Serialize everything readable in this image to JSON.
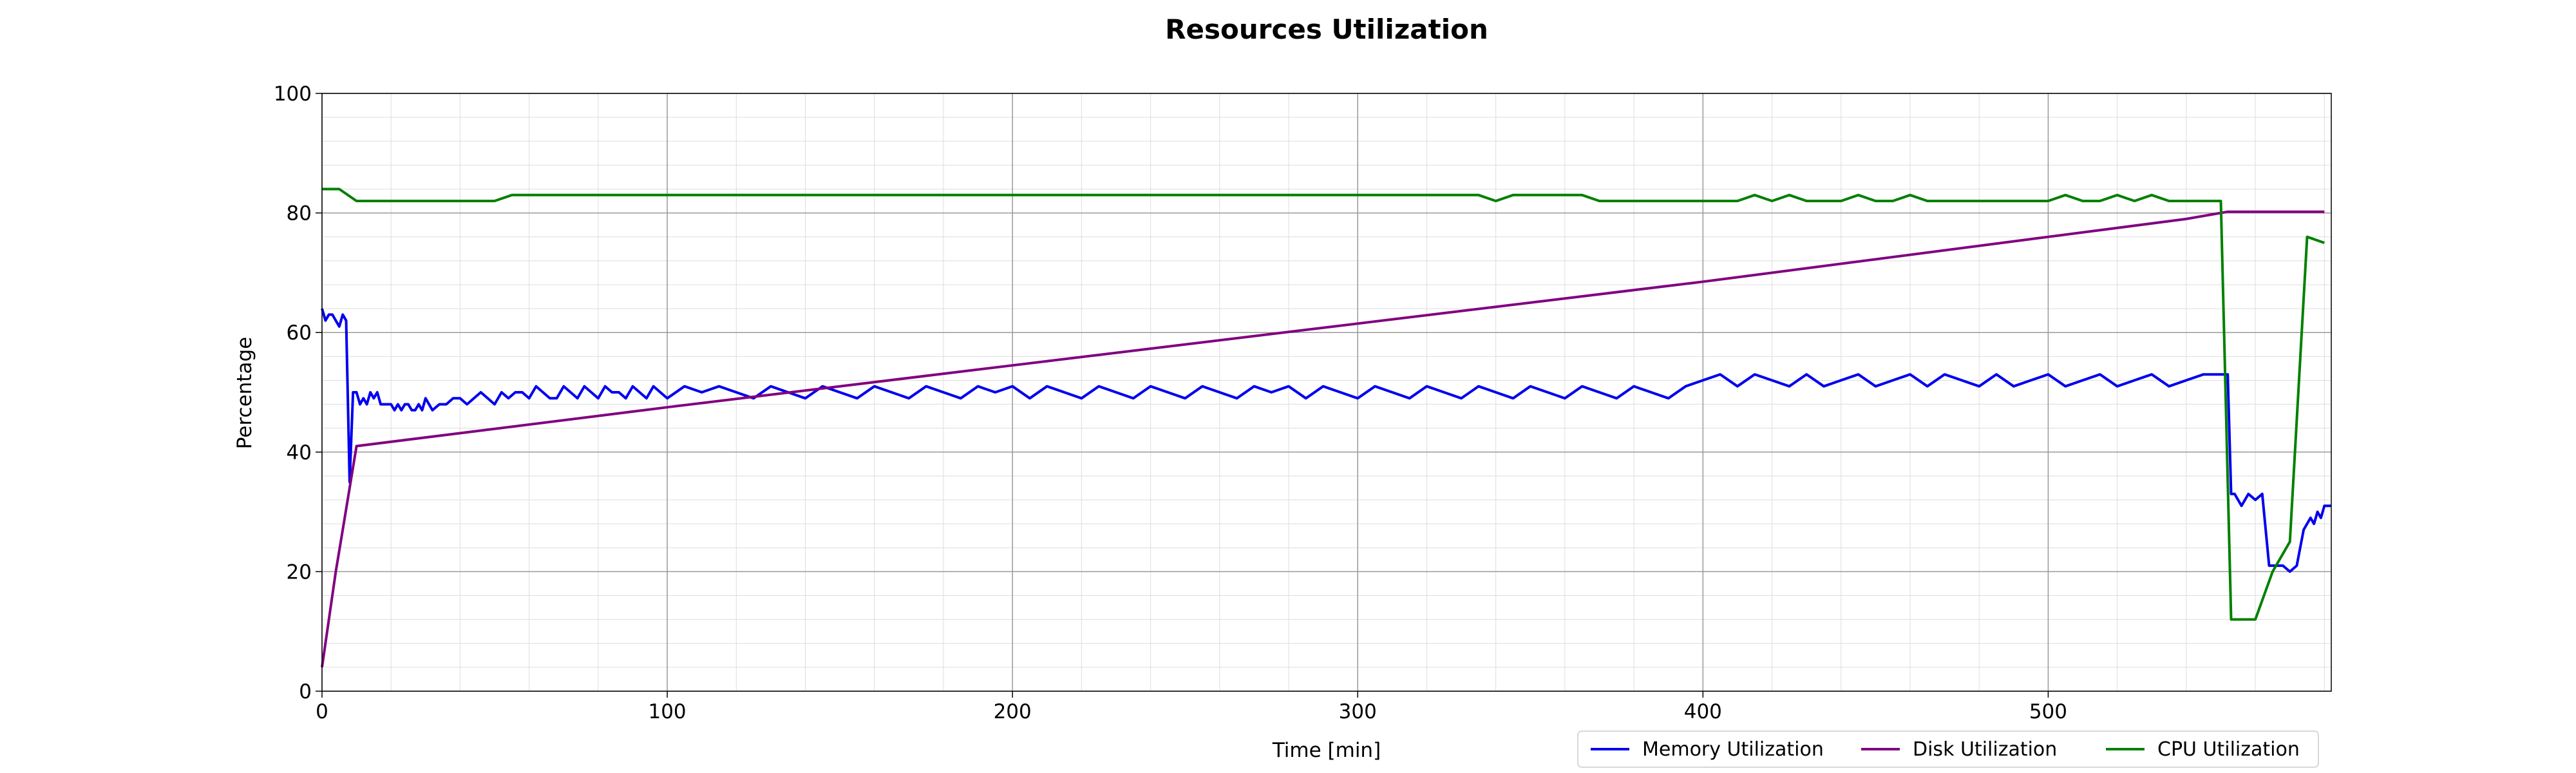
{
  "chart_data": {
    "type": "line",
    "title": "Resources Utilization",
    "xlabel": "Time [min]",
    "ylabel": "Percentage",
    "xlim": [
      0,
      582
    ],
    "ylim": [
      0,
      100
    ],
    "xticks": [
      0,
      100,
      200,
      300,
      400,
      500
    ],
    "yticks": [
      0,
      20,
      40,
      60,
      80,
      100
    ],
    "grid": true,
    "minor_grid": true,
    "legend_position": "lower-right",
    "series": [
      {
        "name": "Memory Utilization",
        "color": "#0000ee",
        "x": [
          0,
          1,
          2,
          3,
          4,
          5,
          6,
          7,
          8,
          9,
          10,
          11,
          12,
          13,
          14,
          15,
          16,
          17,
          18,
          19,
          20,
          21,
          22,
          23,
          24,
          25,
          26,
          27,
          28,
          29,
          30,
          32,
          34,
          36,
          38,
          40,
          42,
          44,
          46,
          48,
          50,
          52,
          54,
          56,
          58,
          60,
          62,
          64,
          66,
          68,
          70,
          72,
          74,
          76,
          78,
          80,
          82,
          84,
          86,
          88,
          90,
          92,
          94,
          96,
          98,
          100,
          105,
          110,
          115,
          120,
          125,
          130,
          135,
          140,
          145,
          150,
          155,
          160,
          165,
          170,
          175,
          180,
          185,
          190,
          195,
          200,
          205,
          210,
          215,
          220,
          225,
          230,
          235,
          240,
          245,
          250,
          255,
          260,
          265,
          270,
          275,
          280,
          285,
          290,
          295,
          300,
          305,
          310,
          315,
          320,
          325,
          330,
          335,
          340,
          345,
          350,
          355,
          360,
          365,
          370,
          375,
          380,
          385,
          390,
          395,
          400,
          405,
          410,
          415,
          420,
          425,
          430,
          435,
          440,
          445,
          450,
          455,
          460,
          465,
          470,
          475,
          480,
          485,
          490,
          495,
          500,
          505,
          510,
          515,
          520,
          525,
          530,
          535,
          540,
          545,
          550,
          552,
          553,
          554,
          556,
          558,
          560,
          562,
          564,
          566,
          568,
          570,
          572,
          574,
          576,
          577,
          578,
          579,
          580,
          582
        ],
        "y": [
          64,
          62,
          63,
          63,
          62,
          61,
          63,
          62,
          35,
          50,
          50,
          48,
          49,
          48,
          50,
          49,
          50,
          48,
          48,
          48,
          48,
          47,
          48,
          47,
          48,
          48,
          47,
          47,
          48,
          47,
          49,
          47,
          48,
          48,
          49,
          49,
          48,
          49,
          50,
          49,
          48,
          50,
          49,
          50,
          50,
          49,
          51,
          50,
          49,
          49,
          51,
          50,
          49,
          51,
          50,
          49,
          51,
          50,
          50,
          49,
          51,
          50,
          49,
          51,
          50,
          49,
          51,
          50,
          51,
          50,
          49,
          51,
          50,
          49,
          51,
          50,
          49,
          51,
          50,
          49,
          51,
          50,
          49,
          51,
          50,
          51,
          49,
          51,
          50,
          49,
          51,
          50,
          49,
          51,
          50,
          49,
          51,
          50,
          49,
          51,
          50,
          51,
          49,
          51,
          50,
          49,
          51,
          50,
          49,
          51,
          50,
          49,
          51,
          50,
          49,
          51,
          50,
          49,
          51,
          50,
          49,
          51,
          50,
          49,
          51,
          52,
          53,
          51,
          53,
          52,
          51,
          53,
          51,
          52,
          53,
          51,
          52,
          53,
          51,
          53,
          52,
          51,
          53,
          51,
          52,
          53,
          51,
          52,
          53,
          51,
          52,
          53,
          51,
          52,
          53,
          53,
          53,
          33,
          33,
          31,
          33,
          32,
          33,
          21,
          21,
          21,
          20,
          21,
          27,
          29,
          28,
          30,
          29,
          31,
          31
        ]
      },
      {
        "name": "Disk Utilization",
        "color": "#800080",
        "x": [
          0,
          2,
          4,
          6,
          8,
          10,
          100,
          200,
          300,
          400,
          500,
          540,
          552,
          580
        ],
        "y": [
          4,
          12,
          20,
          27,
          34,
          41,
          47.5,
          54.5,
          61.5,
          68.5,
          76,
          79,
          80.2,
          80.2
        ]
      },
      {
        "name": "CPU Utilization",
        "color": "#008000",
        "x": [
          0,
          5,
          10,
          50,
          55,
          60,
          335,
          340,
          345,
          365,
          370,
          410,
          415,
          420,
          425,
          430,
          440,
          445,
          450,
          455,
          460,
          465,
          470,
          500,
          505,
          510,
          515,
          520,
          525,
          530,
          535,
          540,
          550,
          553,
          555,
          560,
          565,
          570,
          575,
          580
        ],
        "y": [
          84,
          84,
          82,
          82,
          83,
          83,
          83,
          82,
          83,
          83,
          82,
          82,
          83,
          82,
          83,
          82,
          82,
          83,
          82,
          82,
          83,
          82,
          82,
          82,
          83,
          82,
          82,
          83,
          82,
          83,
          82,
          82,
          82,
          12,
          12,
          12,
          20,
          25,
          76,
          75
        ]
      }
    ]
  }
}
